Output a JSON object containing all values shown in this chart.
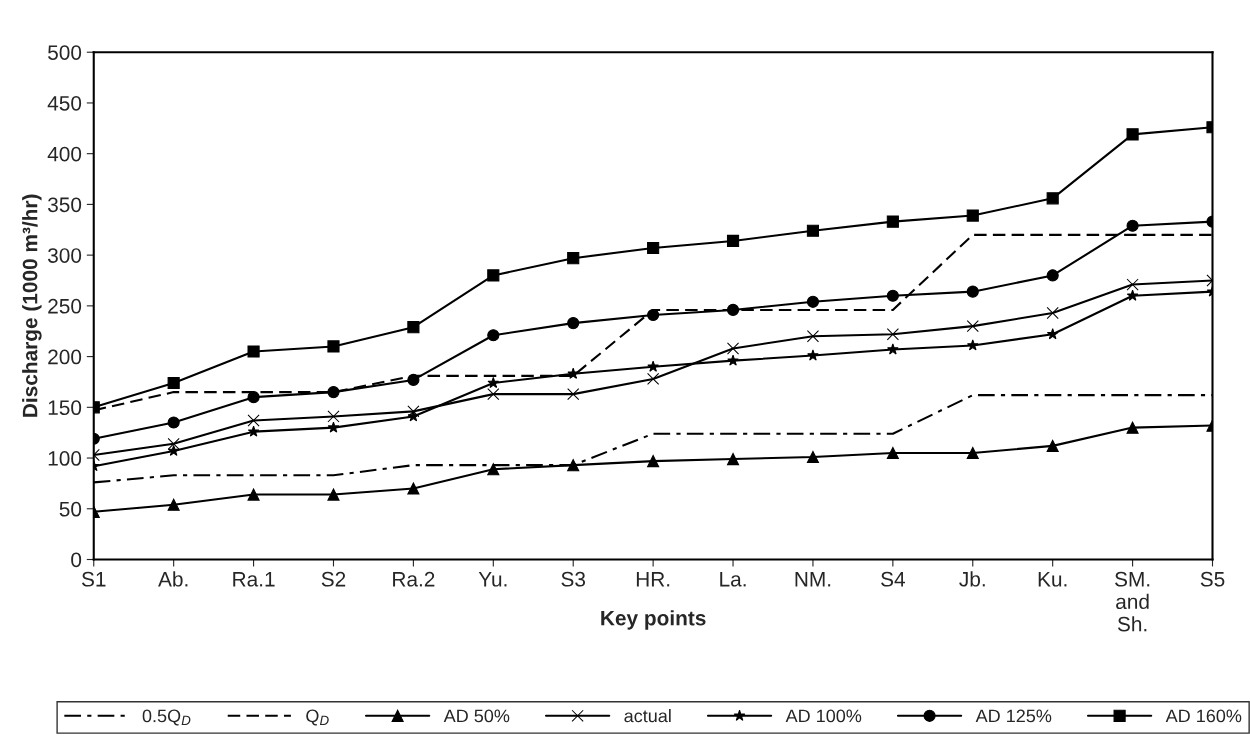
{
  "chart_data": {
    "type": "line",
    "xlabel": "Key points",
    "ylabel": "Discharge (1000 m³/hr)",
    "categories": [
      "S1",
      "Ab.",
      "Ra.1",
      "S2",
      "Ra.2",
      "Yu.",
      "S3",
      "HR.",
      "La.",
      "NM.",
      "S4",
      "Jb.",
      "Ku.",
      "SM.\nand\nSh.",
      "S5"
    ],
    "ylim": [
      0,
      500
    ],
    "yticks": [
      0,
      50,
      100,
      150,
      200,
      250,
      300,
      350,
      400,
      450,
      500
    ],
    "grid": false,
    "legend": "bottom",
    "series": [
      {
        "name": "0.5Q$_{D}$",
        "color": "#000000",
        "marker": "none",
        "line_style": "dashdot",
        "values": [
          76,
          83,
          83,
          83,
          93,
          93,
          93,
          124,
          124,
          124,
          124,
          162,
          162,
          162,
          162
        ]
      },
      {
        "name": "Q$_{D}$",
        "color": "#000000",
        "marker": "none",
        "line_style": "dashed",
        "values": [
          147,
          165,
          165,
          165,
          181,
          181,
          181,
          246,
          246,
          246,
          246,
          320,
          320,
          320,
          320
        ]
      },
      {
        "name": "AD 50%",
        "color": "#000000",
        "marker": "triangle",
        "line_style": "solid",
        "values": [
          47,
          54,
          64,
          64,
          70,
          89,
          93,
          97,
          99,
          101,
          105,
          105,
          112,
          130,
          132
        ]
      },
      {
        "name": "actual",
        "color": "#000000",
        "marker": "cross",
        "line_style": "solid",
        "values": [
          103,
          114,
          137,
          141,
          146,
          163,
          163,
          178,
          208,
          220,
          222,
          230,
          243,
          271,
          275
        ]
      },
      {
        "name": "AD 100%",
        "color": "#000000",
        "marker": "star",
        "line_style": "solid",
        "values": [
          92,
          107,
          126,
          130,
          141,
          174,
          183,
          190,
          196,
          201,
          207,
          211,
          222,
          260,
          264
        ]
      },
      {
        "name": "AD 125%",
        "color": "#000000",
        "marker": "circle",
        "line_style": "solid",
        "values": [
          119,
          135,
          160,
          165,
          177,
          221,
          233,
          241,
          246,
          254,
          260,
          264,
          280,
          329,
          333
        ]
      },
      {
        "name": "AD 160%",
        "color": "#000000",
        "marker": "square",
        "line_style": "solid",
        "values": [
          150,
          174,
          205,
          210,
          229,
          280,
          297,
          307,
          314,
          324,
          333,
          339,
          356,
          419,
          426
        ]
      }
    ]
  }
}
